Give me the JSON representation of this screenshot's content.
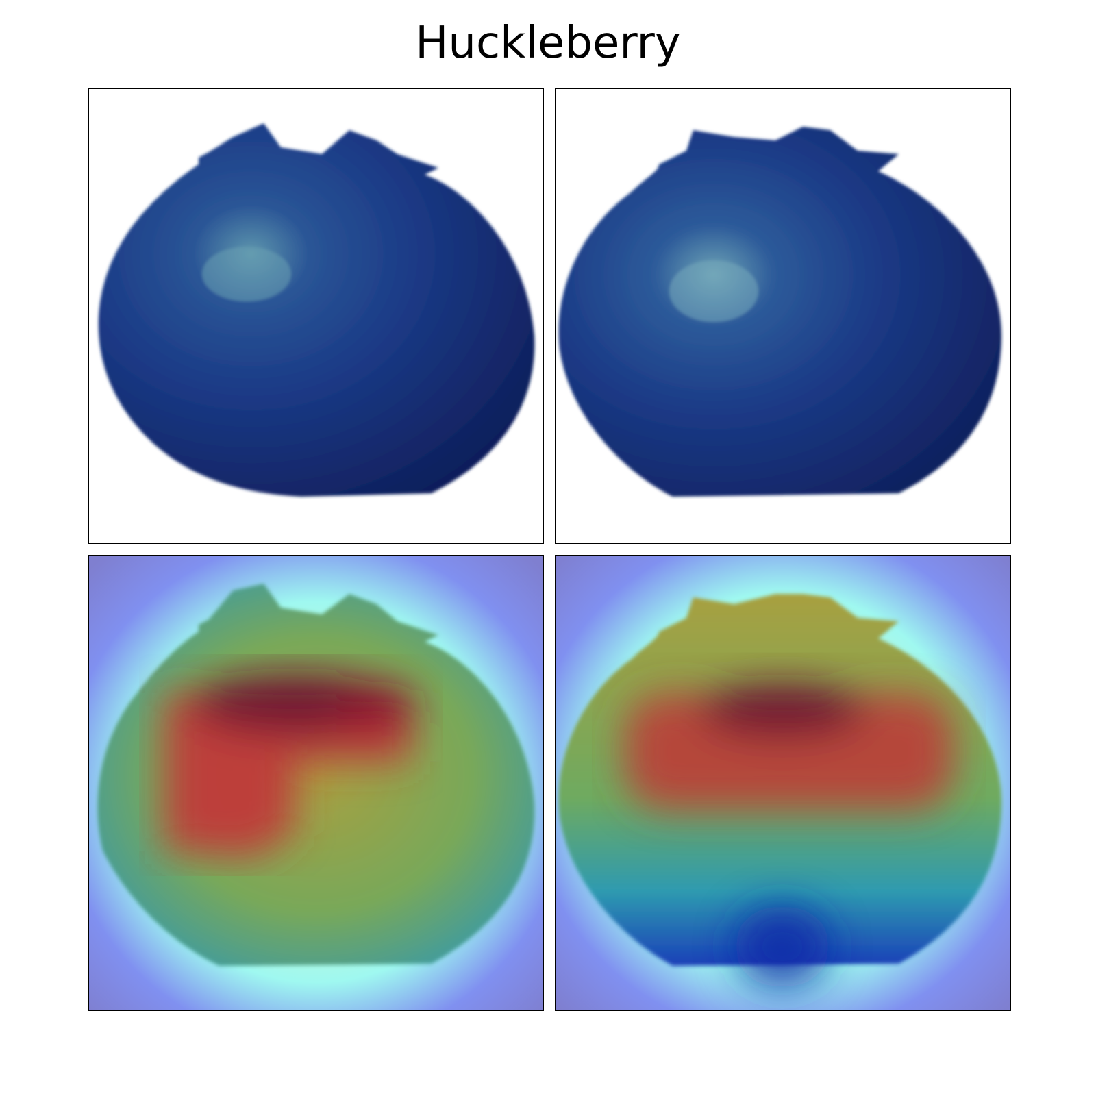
{
  "figure": {
    "title": "Huckleberry"
  },
  "panels": [
    {
      "name": "original-image-1",
      "kind": "photo"
    },
    {
      "name": "original-image-2",
      "kind": "photo"
    },
    {
      "name": "heatmap-overlay-1",
      "kind": "heatmap"
    },
    {
      "name": "heatmap-overlay-2",
      "kind": "heatmap"
    }
  ],
  "colors": {
    "berry_dark": "#0f1f5c",
    "berry_mid": "#1f3f8f",
    "berry_highlight": "#6fa0b0",
    "heat_background": "#8080e8",
    "heat_cyan": "#7ff4f0",
    "heat_green": "#5fb07a",
    "heat_yellow": "#b8b040",
    "heat_red": "#b83030",
    "heat_darkred": "#6a1030"
  }
}
